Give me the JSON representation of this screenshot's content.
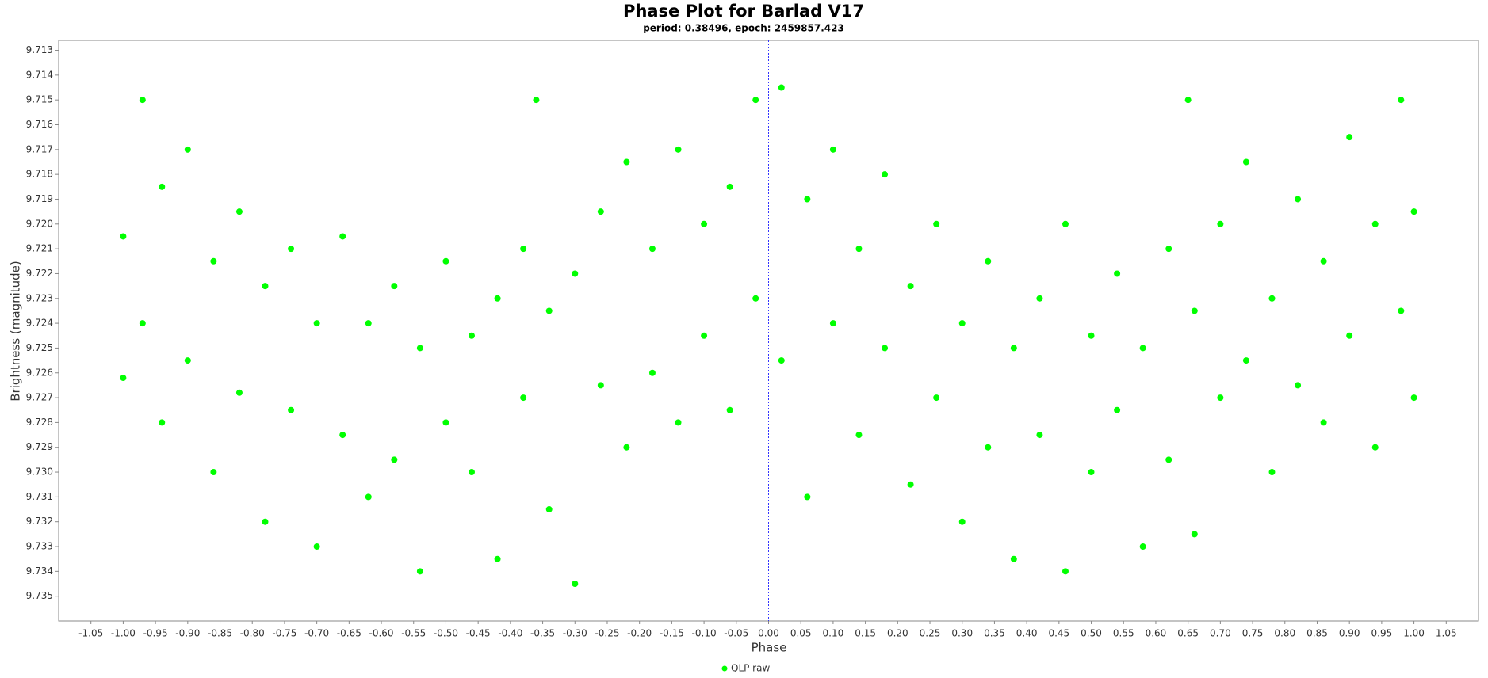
{
  "chart_data": {
    "type": "scatter",
    "title": "Phase Plot for Barlad V17",
    "subtitle": "period: 0.38496, epoch: 2459857.423",
    "x_label": "Phase",
    "y_label": "Brightness (magnitude)",
    "xlim": [
      -1.1,
      1.1
    ],
    "ylim": [
      9.7126,
      9.736
    ],
    "y_inverted": true,
    "vline_x": 0,
    "vline_color": "#3333ff",
    "legend": "bottom",
    "xticks": [
      -1.05,
      {
        "value": -1,
        "label": "-1.00"
      },
      -0.95,
      {
        "value": -0.9,
        "label": "-0.90"
      },
      -0.85,
      {
        "value": -0.8,
        "label": "-0.80"
      },
      -0.75,
      {
        "value": -0.7,
        "label": "-0.70"
      },
      -0.65,
      {
        "value": -0.6,
        "label": "-0.60"
      },
      -0.55,
      {
        "value": -0.5,
        "label": "-0.50"
      },
      -0.45,
      {
        "value": -0.4,
        "label": "-0.40"
      },
      -0.35,
      {
        "value": -0.3,
        "label": "-0.30"
      },
      -0.25,
      {
        "value": -0.2,
        "label": "-0.20"
      },
      -0.15,
      {
        "value": -0.1,
        "label": "-0.10"
      },
      -0.05,
      {
        "value": 0,
        "label": "0.00"
      },
      0.05,
      {
        "value": 0.1,
        "label": "0.10"
      },
      0.15,
      {
        "value": 0.2,
        "label": "0.20"
      },
      0.25,
      {
        "value": 0.3,
        "label": "0.30"
      },
      0.35,
      {
        "value": 0.4,
        "label": "0.40"
      },
      0.45,
      {
        "value": 0.5,
        "label": "0.50"
      },
      0.55,
      {
        "value": 0.6,
        "label": "0.60"
      },
      0.65,
      {
        "value": 0.7,
        "label": "0.70"
      },
      0.75,
      {
        "value": 0.8,
        "label": "0.80"
      },
      0.85,
      {
        "value": 0.9,
        "label": "0.90"
      },
      0.95,
      {
        "value": 1,
        "label": "1.00"
      },
      1.05
    ],
    "yticks": [
      9.713,
      9.714,
      9.715,
      9.716,
      9.717,
      9.718,
      9.719,
      {
        "value": 9.72,
        "label": "9.720"
      },
      9.721,
      9.722,
      9.723,
      9.724,
      9.725,
      9.726,
      9.727,
      9.728,
      9.729,
      {
        "value": 9.73,
        "label": "9.730"
      },
      9.731,
      9.732,
      9.733,
      9.734,
      9.735
    ],
    "x": [
      -1.0,
      -1.0,
      -0.97,
      -0.97,
      -0.94,
      -0.94,
      -0.9,
      -0.9,
      -0.86,
      -0.86,
      -0.82,
      -0.82,
      -0.78,
      -0.78,
      -0.74,
      -0.74,
      -0.7,
      -0.7,
      -0.66,
      -0.66,
      -0.62,
      -0.62,
      -0.58,
      -0.58,
      -0.54,
      -0.54,
      -0.5,
      -0.5,
      -0.46,
      -0.46,
      -0.42,
      -0.42,
      -0.38,
      -0.38,
      -0.34,
      -0.34,
      -0.3,
      -0.3,
      -0.26,
      -0.26,
      -0.22,
      -0.22,
      -0.18,
      -0.18,
      -0.14,
      -0.14,
      -0.1,
      -0.1,
      -0.06,
      -0.06,
      -0.02,
      -0.02,
      0.02,
      0.02,
      0.06,
      0.06,
      0.1,
      0.1,
      0.14,
      0.14,
      0.18,
      0.18,
      0.22,
      0.22,
      0.26,
      0.26,
      0.3,
      0.3,
      0.34,
      0.34,
      0.38,
      0.38,
      0.42,
      0.42,
      0.46,
      0.46,
      0.5,
      0.5,
      0.54,
      0.54,
      0.58,
      0.58,
      0.62,
      0.62,
      0.66,
      0.66,
      0.7,
      0.7,
      0.74,
      0.74,
      0.78,
      0.78,
      0.82,
      0.82,
      0.86,
      0.86,
      0.9,
      0.9,
      0.94,
      0.94,
      0.98,
      0.98,
      1.0,
      1.0,
      -0.36,
      0.65
    ],
    "series": [
      {
        "name": "QLP raw",
        "color": "#00ff00",
        "values": [
          9.7205,
          9.7262,
          9.715,
          9.724,
          9.7185,
          9.728,
          9.717,
          9.7255,
          9.7215,
          9.73,
          9.7195,
          9.7268,
          9.7225,
          9.732,
          9.721,
          9.7275,
          9.733,
          9.724,
          9.7205,
          9.7285,
          9.724,
          9.731,
          9.7225,
          9.7295,
          9.734,
          9.725,
          9.7215,
          9.728,
          9.73,
          9.7245,
          9.7335,
          9.723,
          9.721,
          9.727,
          9.7315,
          9.7235,
          9.7345,
          9.722,
          9.7195,
          9.7265,
          9.7175,
          9.729,
          9.721,
          9.726,
          9.717,
          9.728,
          9.72,
          9.7245,
          9.7185,
          9.7275,
          9.715,
          9.723,
          9.7145,
          9.7255,
          9.719,
          9.731,
          9.717,
          9.724,
          9.721,
          9.7285,
          9.718,
          9.725,
          9.7225,
          9.7305,
          9.72,
          9.727,
          9.724,
          9.732,
          9.7215,
          9.729,
          9.725,
          9.7335,
          9.723,
          9.7285,
          9.72,
          9.734,
          9.7245,
          9.73,
          9.722,
          9.7275,
          9.733,
          9.725,
          9.721,
          9.7295,
          9.7235,
          9.7325,
          9.72,
          9.727,
          9.7175,
          9.7255,
          9.723,
          9.73,
          9.719,
          9.7265,
          9.7215,
          9.728,
          9.7165,
          9.7245,
          9.72,
          9.729,
          9.715,
          9.7235,
          9.7195,
          9.727,
          9.715,
          9.715
        ]
      }
    ]
  }
}
